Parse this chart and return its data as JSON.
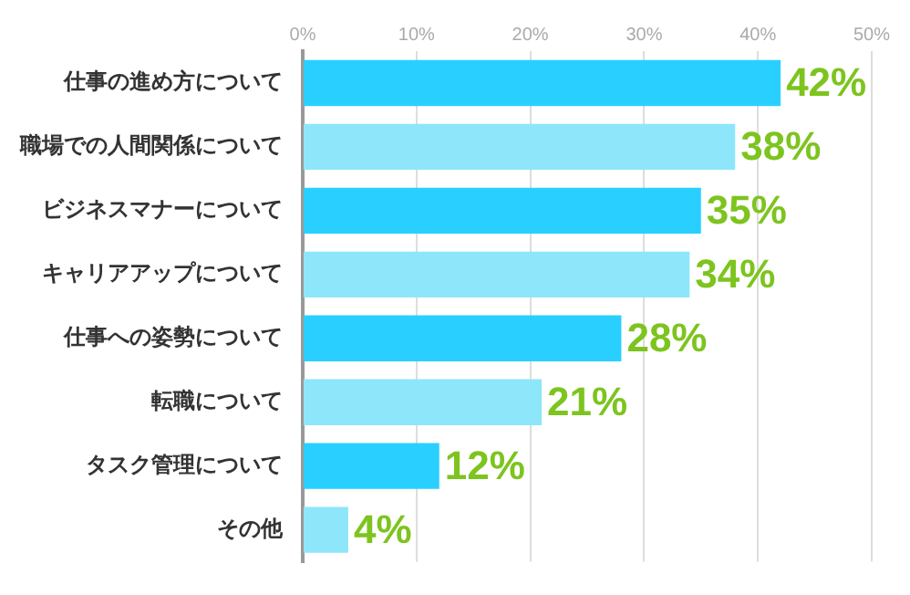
{
  "chart_data": {
    "type": "bar",
    "orientation": "horizontal",
    "categories": [
      "仕事の進め方について",
      "職場での人間関係について",
      "ビジネスマナーについて",
      "キャリアアップについて",
      "仕事への姿勢について",
      "転職について",
      "タスク管理について",
      "その他"
    ],
    "values": [
      42,
      38,
      35,
      34,
      28,
      21,
      12,
      4
    ],
    "colors": [
      "#29d0ff",
      "#8ee6fa",
      "#29d0ff",
      "#8ee6fa",
      "#29d0ff",
      "#8ee6fa",
      "#29d0ff",
      "#8ee6fa"
    ],
    "value_labels": [
      "42%",
      "38%",
      "35%",
      "34%",
      "28%",
      "21%",
      "12%",
      "4%"
    ],
    "xlim": [
      0,
      50
    ],
    "xticks": [
      {
        "value": 0,
        "label": "0%"
      },
      {
        "value": 10,
        "label": "10%"
      },
      {
        "value": 20,
        "label": "20%"
      },
      {
        "value": 30,
        "label": "30%"
      },
      {
        "value": 40,
        "label": "40%"
      },
      {
        "value": 50,
        "label": "50%"
      }
    ],
    "grid": "x",
    "legend": false
  }
}
